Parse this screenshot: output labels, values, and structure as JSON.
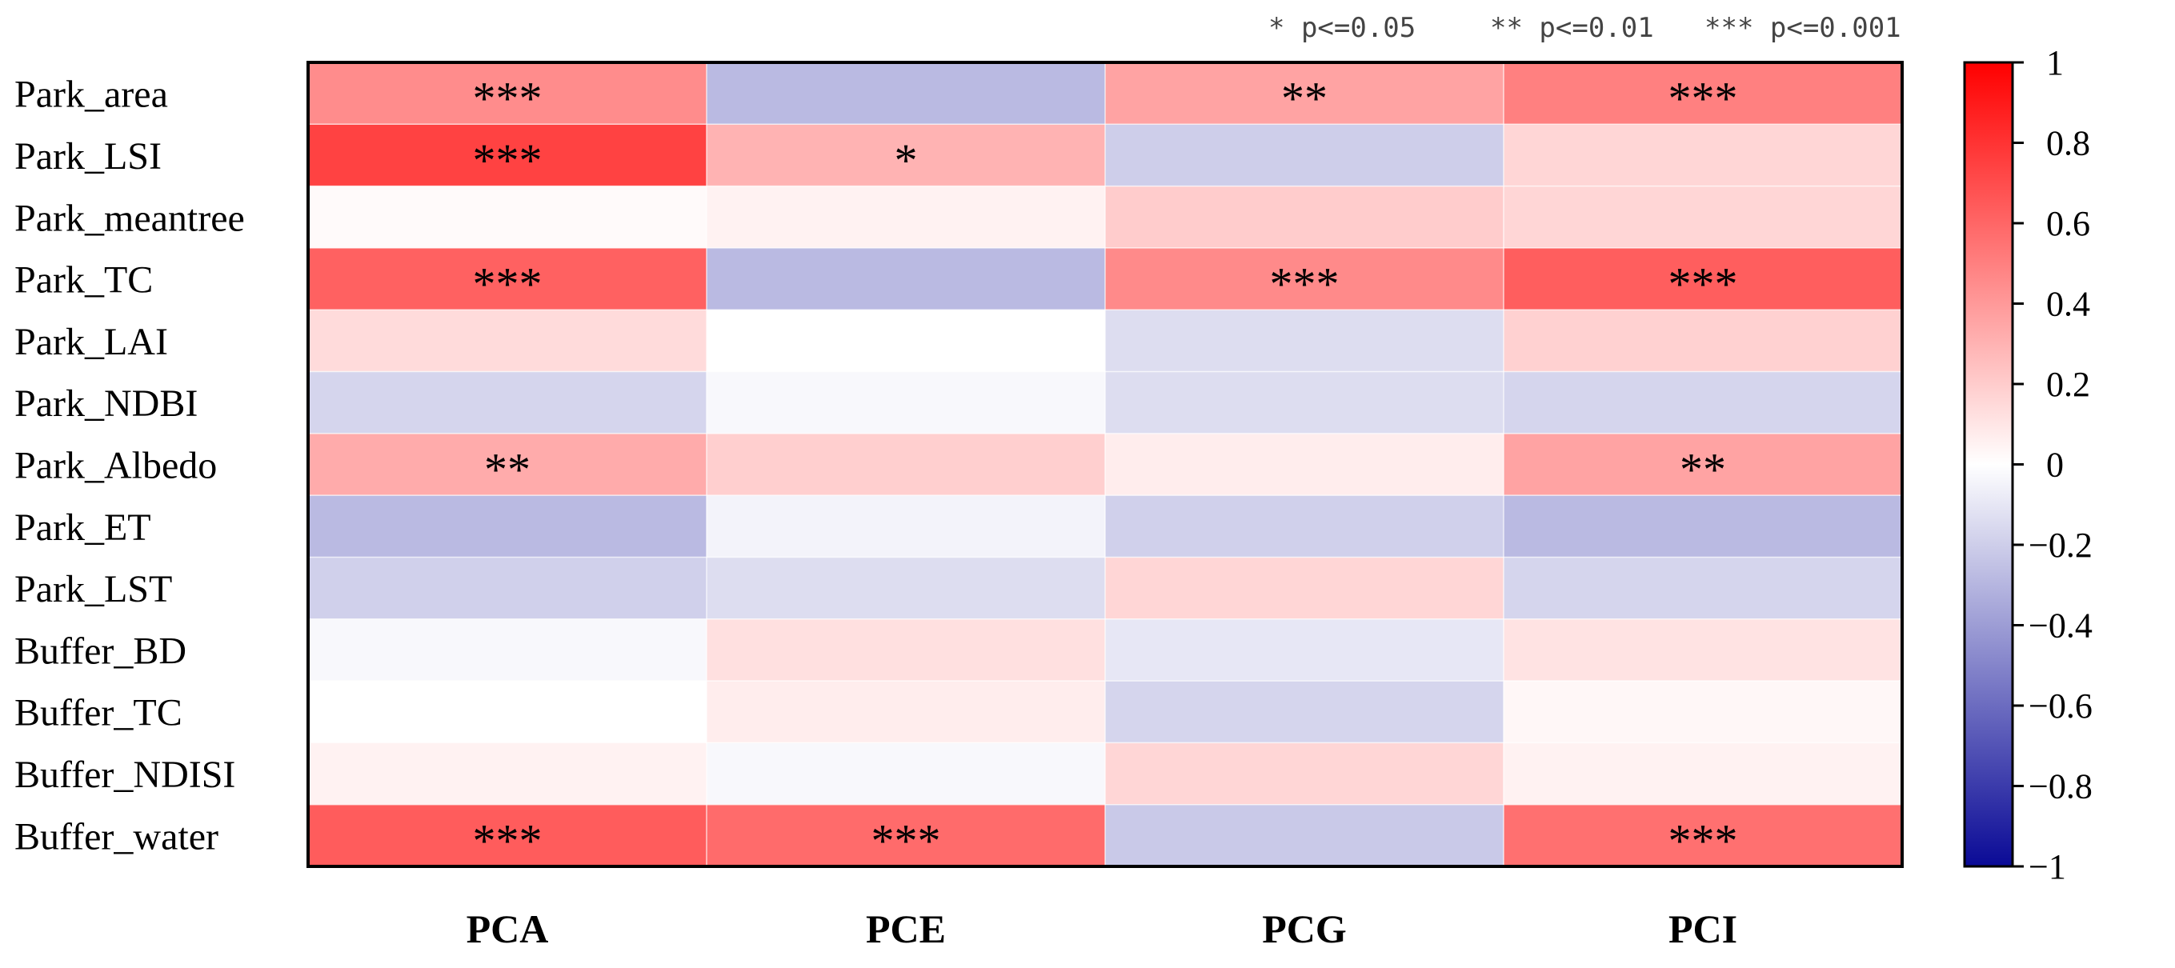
{
  "chart_data": {
    "type": "heatmap",
    "title": "",
    "columns": [
      "PCA",
      "PCE",
      "PCG",
      "PCI"
    ],
    "rows": [
      "Park_area",
      "Park_LSI",
      "Park_meantree",
      "Park_TC",
      "Park_LAI",
      "Park_NDBI",
      "Park_Albedo",
      "Park_ET",
      "Park_LST",
      "Buffer_BD",
      "Buffer_TC",
      "Buffer_NDISI",
      "Buffer_water"
    ],
    "values": [
      [
        0.45,
        -0.28,
        0.36,
        0.5
      ],
      [
        0.74,
        0.3,
        -0.2,
        0.16
      ],
      [
        0.02,
        0.05,
        0.2,
        0.16
      ],
      [
        0.62,
        -0.28,
        0.46,
        0.63
      ],
      [
        0.14,
        0.0,
        -0.14,
        0.18
      ],
      [
        -0.17,
        -0.03,
        -0.14,
        -0.17
      ],
      [
        0.33,
        0.19,
        0.07,
        0.36
      ],
      [
        -0.28,
        -0.05,
        -0.19,
        -0.28
      ],
      [
        -0.19,
        -0.14,
        0.16,
        -0.17
      ],
      [
        -0.03,
        0.12,
        -0.1,
        0.11
      ],
      [
        0.0,
        0.07,
        -0.17,
        0.03
      ],
      [
        0.05,
        -0.03,
        0.16,
        0.05
      ],
      [
        0.64,
        0.58,
        -0.22,
        0.56
      ]
    ],
    "significance": [
      [
        "***",
        "",
        "**",
        "***"
      ],
      [
        "***",
        "*",
        "",
        ""
      ],
      [
        "",
        "",
        "",
        ""
      ],
      [
        "***",
        "",
        "***",
        "***"
      ],
      [
        "",
        "",
        "",
        ""
      ],
      [
        "",
        "",
        "",
        ""
      ],
      [
        "**",
        "",
        "",
        "**"
      ],
      [
        "",
        "",
        "",
        ""
      ],
      [
        "",
        "",
        "",
        ""
      ],
      [
        "",
        "",
        "",
        ""
      ],
      [
        "",
        "",
        "",
        ""
      ],
      [
        "",
        "",
        "",
        ""
      ],
      [
        "***",
        "***",
        "",
        "***"
      ]
    ],
    "significance_legend": [
      "* p<=0.05",
      "** p<=0.01",
      "*** p<=0.001"
    ],
    "colorbar": {
      "range": [
        -1,
        1
      ],
      "ticks": [
        "1",
        "0.8",
        "0.6",
        "0.4",
        "0.2",
        "0",
        "−0.2",
        "−0.4",
        "−0.6",
        "−0.8",
        "−1"
      ],
      "colors": {
        "min": "#0a0a96",
        "mid": "#ffffff",
        "max": "#ff0000"
      }
    }
  }
}
